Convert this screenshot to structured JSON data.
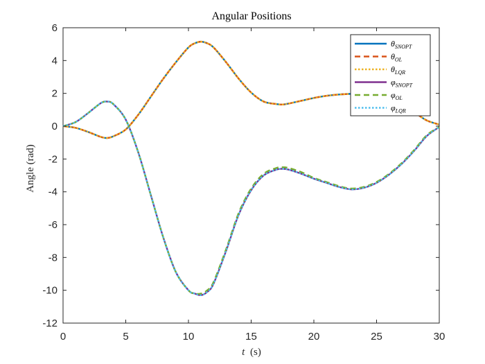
{
  "chart_data": {
    "type": "line",
    "title": "Angular Positions",
    "xlabel": {
      "var": "t",
      "unit": "(s)"
    },
    "ylabel": "Angle (rad)",
    "xlim": [
      0,
      30
    ],
    "ylim": [
      -12,
      6
    ],
    "xticks": [
      0,
      5,
      10,
      15,
      20,
      25,
      30
    ],
    "yticks": [
      6,
      4,
      2,
      0,
      -2,
      -4,
      -6,
      -8,
      -10,
      -12
    ],
    "grid": false,
    "legend_position": "top-right",
    "x": [
      0,
      1,
      2,
      3,
      3.5,
      4,
      5,
      6,
      7,
      8,
      9,
      10,
      10.5,
      11,
      11.5,
      12,
      13,
      14,
      15,
      16,
      17,
      17.5,
      18,
      19,
      20,
      21,
      22,
      23,
      24,
      25,
      26,
      27,
      28,
      29,
      30
    ],
    "series": [
      {
        "name": "θ_SNOPT",
        "symbol": "θ",
        "sub": "SNOPT",
        "color": "#0072BD",
        "dash": "solid",
        "values": [
          0,
          -0.1,
          -0.35,
          -0.65,
          -0.72,
          -0.62,
          -0.2,
          0.7,
          1.8,
          2.9,
          3.9,
          4.8,
          5.05,
          5.15,
          5.05,
          4.8,
          3.9,
          2.9,
          2.05,
          1.5,
          1.35,
          1.32,
          1.38,
          1.55,
          1.72,
          1.85,
          1.93,
          1.97,
          1.98,
          1.9,
          1.65,
          1.3,
          0.85,
          0.35,
          0.1
        ]
      },
      {
        "name": "θ_OL",
        "symbol": "θ",
        "sub": "OL",
        "color": "#D95319",
        "dash": "dashed",
        "values": [
          0,
          -0.1,
          -0.35,
          -0.65,
          -0.72,
          -0.62,
          -0.2,
          0.7,
          1.8,
          2.9,
          3.9,
          4.8,
          5.05,
          5.15,
          5.05,
          4.8,
          3.9,
          2.9,
          2.05,
          1.5,
          1.35,
          1.32,
          1.38,
          1.55,
          1.72,
          1.85,
          1.93,
          1.97,
          1.98,
          1.9,
          1.65,
          1.3,
          0.85,
          0.35,
          0.1
        ]
      },
      {
        "name": "θ_LQR",
        "symbol": "θ",
        "sub": "LQR",
        "color": "#EDB120",
        "dash": "dotted",
        "values": [
          0,
          -0.1,
          -0.35,
          -0.65,
          -0.72,
          -0.62,
          -0.2,
          0.7,
          1.8,
          2.9,
          3.9,
          4.8,
          5.05,
          5.15,
          5.05,
          4.8,
          3.9,
          2.9,
          2.05,
          1.5,
          1.35,
          1.32,
          1.38,
          1.55,
          1.72,
          1.85,
          1.93,
          1.97,
          1.98,
          1.9,
          1.65,
          1.3,
          0.85,
          0.35,
          0.1
        ]
      },
      {
        "name": "φ_SNOPT",
        "symbol": "φ",
        "sub": "SNOPT",
        "color": "#7E2F8E",
        "dash": "solid",
        "values": [
          0,
          0.25,
          0.8,
          1.4,
          1.5,
          1.35,
          0.4,
          -1.6,
          -4.2,
          -6.8,
          -8.9,
          -10.0,
          -10.2,
          -10.3,
          -10.1,
          -9.6,
          -7.6,
          -5.4,
          -3.9,
          -3.0,
          -2.65,
          -2.6,
          -2.65,
          -2.9,
          -3.2,
          -3.45,
          -3.7,
          -3.85,
          -3.75,
          -3.45,
          -2.95,
          -2.3,
          -1.5,
          -0.6,
          -0.05
        ]
      },
      {
        "name": "φ_OL",
        "symbol": "φ",
        "sub": "OL",
        "color": "#77AC30",
        "dash": "dashed",
        "values": [
          0,
          0.25,
          0.8,
          1.4,
          1.5,
          1.35,
          0.4,
          -1.6,
          -4.2,
          -6.8,
          -8.9,
          -10.0,
          -10.2,
          -10.2,
          -10.0,
          -9.5,
          -7.5,
          -5.3,
          -3.8,
          -2.9,
          -2.55,
          -2.5,
          -2.55,
          -2.8,
          -3.15,
          -3.4,
          -3.65,
          -3.8,
          -3.7,
          -3.4,
          -2.9,
          -2.25,
          -1.45,
          -0.55,
          -0.05
        ]
      },
      {
        "name": "φ_LQR",
        "symbol": "φ",
        "sub": "LQR",
        "color": "#4DBEEE",
        "dash": "dotted",
        "values": [
          0,
          0.25,
          0.8,
          1.4,
          1.5,
          1.35,
          0.4,
          -1.6,
          -4.2,
          -6.8,
          -8.9,
          -10.0,
          -10.2,
          -10.3,
          -10.1,
          -9.6,
          -7.6,
          -5.4,
          -3.9,
          -3.0,
          -2.65,
          -2.6,
          -2.65,
          -2.9,
          -3.2,
          -3.45,
          -3.7,
          -3.85,
          -3.75,
          -3.45,
          -2.95,
          -2.3,
          -1.5,
          -0.6,
          -0.05
        ]
      }
    ]
  }
}
